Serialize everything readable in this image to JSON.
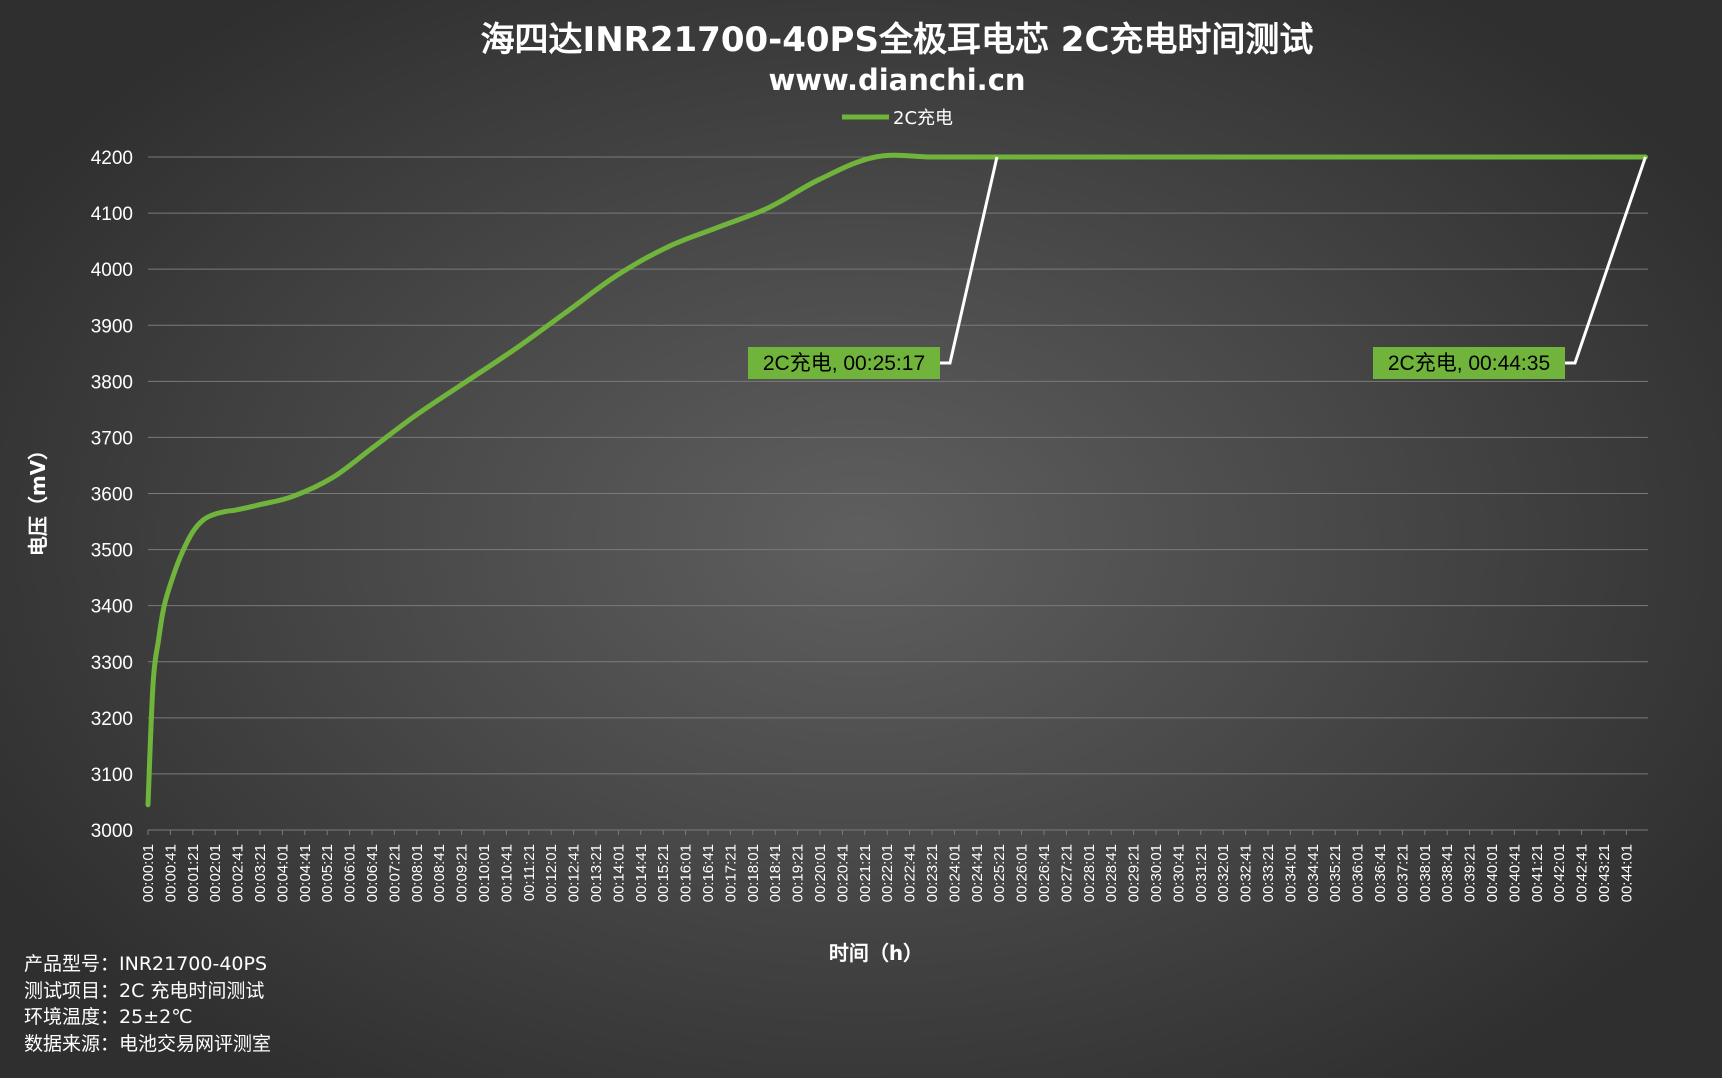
{
  "chart_data": {
    "type": "line",
    "title": "海四达INR21700-40PS全极耳电芯 2C充电时间测试",
    "subtitle": "www.dianchi.cn",
    "xlabel": "时间（h）",
    "ylabel": "电压（mV）",
    "ylim": [
      3000,
      4200
    ],
    "yticks": [
      3000,
      3100,
      3200,
      3300,
      3400,
      3500,
      3600,
      3700,
      3800,
      3900,
      4000,
      4100,
      4200
    ],
    "grid": true,
    "legend_position": "top-center",
    "x_tick_labels": [
      "00:00:01",
      "00:00:41",
      "00:01:21",
      "00:02:01",
      "00:02:41",
      "00:03:21",
      "00:04:01",
      "00:04:41",
      "00:05:21",
      "00:06:01",
      "00:06:41",
      "00:07:21",
      "00:08:01",
      "00:08:41",
      "00:09:21",
      "00:10:01",
      "00:10:41",
      "00:11:21",
      "00:12:01",
      "00:12:41",
      "00:13:21",
      "00:14:01",
      "00:14:41",
      "00:15:21",
      "00:16:01",
      "00:16:41",
      "00:17:21",
      "00:18:01",
      "00:18:41",
      "00:19:21",
      "00:20:01",
      "00:20:41",
      "00:21:21",
      "00:22:01",
      "00:22:41",
      "00:23:21",
      "00:24:01",
      "00:24:41",
      "00:25:21",
      "00:26:01",
      "00:26:41",
      "00:27:21",
      "00:28:01",
      "00:28:41",
      "00:29:21",
      "00:30:01",
      "00:30:41",
      "00:31:21",
      "00:32:01",
      "00:32:41",
      "00:33:21",
      "00:34:01",
      "00:34:41",
      "00:35:21",
      "00:36:01",
      "00:36:41",
      "00:37:21",
      "00:38:01",
      "00:38:41",
      "00:39:21",
      "00:40:01",
      "00:40:41",
      "00:41:21",
      "00:42:01",
      "00:42:41",
      "00:43:21",
      "00:44:01"
    ],
    "series": [
      {
        "name": "2C充电",
        "color": "#70b43c",
        "x_seconds": [
          1,
          10,
          20,
          30,
          45,
          60,
          80,
          100,
          120,
          140,
          160,
          200,
          260,
          330,
          400,
          480,
          570,
          660,
          750,
          840,
          930,
          1020,
          1110,
          1200,
          1300,
          1400,
          1480,
          1517,
          2675
        ],
        "values": [
          3045,
          3260,
          3340,
          3400,
          3450,
          3490,
          3530,
          3553,
          3563,
          3568,
          3571,
          3580,
          3595,
          3628,
          3680,
          3740,
          3800,
          3860,
          3925,
          3990,
          4040,
          4075,
          4110,
          4160,
          4200,
          4200,
          4200,
          4200,
          4200
        ]
      }
    ],
    "annotations": [
      {
        "label": "2C充电, 00:25:17",
        "x_seconds": 1517,
        "y": 4200
      },
      {
        "label": "2C充电, 00:44:35",
        "x_seconds": 2675,
        "y": 4200
      }
    ]
  },
  "info": [
    {
      "label": "产品型号：",
      "value": "INR21700-40PS"
    },
    {
      "label": "测试项目：",
      "value": "2C 充电时间测试"
    },
    {
      "label": "环境温度：",
      "value": "25±2℃"
    },
    {
      "label": "数据来源：",
      "value": "电池交易网评测室"
    }
  ],
  "colors": {
    "series": "#70b43c",
    "leader": "#ffffff",
    "grid": "#7a7a7a",
    "text": "#ffffff"
  }
}
